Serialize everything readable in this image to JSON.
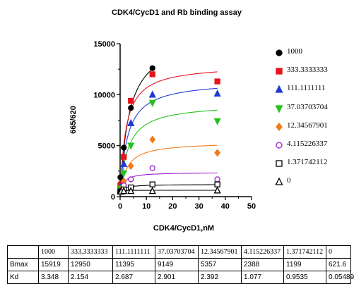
{
  "chart_data": {
    "type": "scatter",
    "title": "CDK4/CycD1 and Rb binding assay",
    "xlabel": "CDK4/CycD1,nM",
    "ylabel": "665/620",
    "xlim": [
      0,
      50
    ],
    "ylim": [
      0,
      15000
    ],
    "x_ticks": [
      "0",
      "10",
      "20",
      "30",
      "40",
      "50"
    ],
    "y_ticks": [
      "0",
      "5000",
      "10000",
      "15000"
    ],
    "grid": false,
    "legend_position": "right",
    "series": [
      {
        "name": "1000",
        "color": "#000000",
        "marker": "circle-filled",
        "points": [
          [
            0.1,
            1900
          ],
          [
            0.4,
            900
          ],
          [
            1.4,
            4800
          ],
          [
            4.1,
            8700
          ],
          [
            12.3,
            12600
          ]
        ]
      },
      {
        "name": "333.3333333",
        "color": "#e8141b",
        "marker": "square-filled",
        "points": [
          [
            0.1,
            1100
          ],
          [
            0.4,
            1200
          ],
          [
            1.4,
            3900
          ],
          [
            4.1,
            9400
          ],
          [
            12.3,
            12000
          ],
          [
            37.0,
            11300
          ]
        ]
      },
      {
        "name": "111.1111111",
        "color": "#1f3ad6",
        "marker": "triangle-up-filled",
        "points": [
          [
            0.1,
            600
          ],
          [
            0.4,
            1000
          ],
          [
            1.4,
            3200
          ],
          [
            4.1,
            7200
          ],
          [
            12.3,
            10000
          ],
          [
            37.0,
            10100
          ]
        ]
      },
      {
        "name": "37.03703704",
        "color": "#27c21d",
        "marker": "triangle-down-filled",
        "points": [
          [
            0.1,
            600
          ],
          [
            0.4,
            800
          ],
          [
            1.4,
            2300
          ],
          [
            4.1,
            5000
          ],
          [
            12.3,
            9200
          ],
          [
            37.0,
            7400
          ]
        ]
      },
      {
        "name": "12.34567901",
        "color": "#f07b18",
        "marker": "diamond-filled",
        "points": [
          [
            0.1,
            500
          ],
          [
            0.4,
            700
          ],
          [
            1.4,
            1500
          ],
          [
            4.1,
            3000
          ],
          [
            12.3,
            5600
          ],
          [
            37.0,
            4300
          ]
        ]
      },
      {
        "name": "4.115226337",
        "color": "#a01bc9",
        "marker": "circle-open",
        "points": [
          [
            0.1,
            500
          ],
          [
            0.4,
            600
          ],
          [
            1.4,
            1100
          ],
          [
            4.1,
            1700
          ],
          [
            12.3,
            2800
          ],
          [
            37.0,
            1700
          ]
        ]
      },
      {
        "name": "1.371742112",
        "color": "#000000",
        "marker": "square-open",
        "points": [
          [
            0.1,
            500
          ],
          [
            0.4,
            500
          ],
          [
            1.4,
            700
          ],
          [
            4.1,
            900
          ],
          [
            12.3,
            1200
          ],
          [
            37.0,
            1200
          ]
        ]
      },
      {
        "name": "0",
        "color": "#000000",
        "marker": "triangle-up-open",
        "points": [
          [
            0.1,
            500
          ],
          [
            0.4,
            500
          ],
          [
            1.4,
            550
          ],
          [
            4.1,
            550
          ],
          [
            12.3,
            550
          ],
          [
            37.0,
            600
          ]
        ]
      }
    ],
    "table": {
      "columns": [
        "",
        "1000",
        "333.3333333",
        "111.1111111",
        "37.03703704",
        "12.34567901",
        "4.115226337",
        "1.371742112",
        "0"
      ],
      "rows": [
        [
          "Bmax",
          "15919",
          "12950",
          "11395",
          "9149",
          "5357",
          "2388",
          "1199",
          "621.6"
        ],
        [
          "Kd",
          "3.348",
          "2.154",
          "2.687",
          "2.901",
          "2.392",
          "1.077",
          "0.9535",
          "0.05489"
        ]
      ]
    }
  }
}
